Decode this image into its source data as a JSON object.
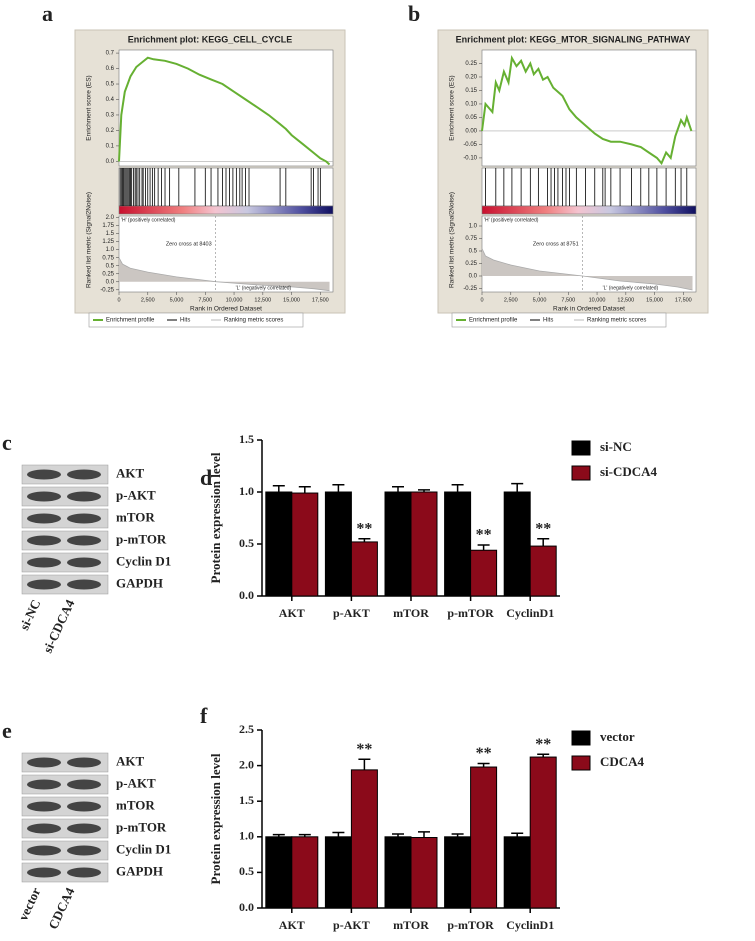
{
  "chart_data": [
    {
      "type": "gsea",
      "panel": "a",
      "title": "Enrichment plot: KEGG_CELL_CYCLE",
      "ylabel": "Enrichment score (ES)",
      "color": "#66b032",
      "x": [
        0,
        200,
        500,
        1000,
        1500,
        2000,
        2500,
        3000,
        4000,
        5000,
        6000,
        7000,
        8000,
        9000,
        10000,
        11000,
        12000,
        13000,
        14000,
        14500,
        15000,
        16000,
        17000,
        17500,
        18000,
        18300
      ],
      "values": [
        0,
        0.3,
        0.45,
        0.55,
        0.61,
        0.64,
        0.67,
        0.66,
        0.65,
        0.63,
        0.6,
        0.56,
        0.53,
        0.5,
        0.45,
        0.4,
        0.35,
        0.3,
        0.24,
        0.21,
        0.17,
        0.11,
        0.05,
        0.02,
        0.0,
        -0.02
      ],
      "xlim": [
        0,
        18600
      ],
      "ylim": [
        -0.03,
        0.72
      ],
      "yticks": [
        {
          "value": 0,
          "label": "0.0"
        },
        0.1,
        0.2,
        0.3,
        0.4,
        0.5,
        0.6,
        0.7
      ],
      "xticks": [
        0,
        {
          "value": 2500,
          "label": "2,500"
        },
        {
          "value": 5000,
          "label": "5,000"
        },
        {
          "value": 7500,
          "label": "7,500"
        },
        {
          "value": 10000,
          "label": "10,000"
        },
        {
          "value": 12500,
          "label": "12,500"
        },
        {
          "value": 15000,
          "label": "15,000"
        },
        {
          "value": 17500,
          "label": "17,500"
        }
      ],
      "hits": [
        100,
        200,
        300,
        400,
        500,
        600,
        700,
        800,
        900,
        1000,
        1100,
        1250,
        1400,
        1500,
        1650,
        1800,
        2000,
        2100,
        2300,
        2500,
        2700,
        2900,
        3100,
        3400,
        3700,
        4000,
        4400,
        5200,
        6600,
        7500,
        8000,
        8600,
        9000,
        9300,
        9600,
        9900,
        10200,
        10500,
        10700,
        11000,
        11300,
        14000,
        14500,
        16700,
        16900,
        17300,
        17500
      ],
      "metric": {
        "ylabel": "Ranked list metric (Signal2Noise)",
        "x": [
          0,
          300,
          1000,
          2500,
          5000,
          8403,
          12000,
          15000,
          17000,
          18300
        ],
        "values": [
          0.75,
          0.55,
          0.42,
          0.3,
          0.15,
          0,
          -0.1,
          -0.16,
          -0.22,
          -0.28
        ],
        "ylim": [
          -0.32,
          2.05
        ],
        "yticks": [
          {
            "value": 2,
            "label": "2.0"
          },
          1.75,
          1.5,
          1.25,
          {
            "value": 1,
            "label": "1.0"
          },
          0.75,
          0.5,
          0.25,
          {
            "value": 0,
            "label": "0.0"
          },
          -0.25
        ]
      },
      "zero_cross": "Zero cross at 8403",
      "pos_label": "'H' (positively correlated)",
      "neg_label": "'L' (negatively correlated)",
      "xlabel": "Rank in Ordered Dataset",
      "legend": [
        "Enrichment profile",
        "Hits",
        "Ranking metric scores"
      ]
    },
    {
      "type": "gsea",
      "panel": "b",
      "title": "Enrichment plot: KEGG_MTOR_SIGNALING_PATHWAY",
      "ylabel": "Enrichment score (ES)",
      "color": "#66b032",
      "x": [
        0,
        300,
        900,
        1200,
        1500,
        1900,
        2300,
        2600,
        3000,
        3400,
        3800,
        4200,
        4500,
        4900,
        5300,
        5700,
        6200,
        7000,
        7600,
        8200,
        9000,
        9800,
        10500,
        11200,
        12000,
        13000,
        13800,
        14500,
        15200,
        15600,
        16000,
        16400,
        16800,
        17300,
        17600,
        17800,
        18200
      ],
      "values": [
        0,
        0.1,
        0.07,
        0.18,
        0.15,
        0.22,
        0.18,
        0.27,
        0.24,
        0.26,
        0.22,
        0.25,
        0.21,
        0.23,
        0.19,
        0.2,
        0.16,
        0.13,
        0.08,
        0.05,
        0.02,
        -0.01,
        -0.03,
        -0.04,
        -0.04,
        -0.05,
        -0.06,
        -0.08,
        -0.1,
        -0.12,
        -0.08,
        -0.1,
        -0.02,
        0.04,
        0.02,
        0.05,
        0.0
      ],
      "xlim": [
        0,
        18600
      ],
      "ylim": [
        -0.13,
        0.3
      ],
      "yticks": [
        0.25,
        {
          "value": 0.2,
          "label": "0.20"
        },
        0.15,
        {
          "value": 0.1,
          "label": "0.10"
        },
        0.05,
        {
          "value": 0,
          "label": "0.00"
        },
        -0.05,
        {
          "value": -0.1,
          "label": "-0.10"
        }
      ],
      "xticks": [
        0,
        {
          "value": 2500,
          "label": "2,500"
        },
        {
          "value": 5000,
          "label": "5,000"
        },
        {
          "value": 7500,
          "label": "7,500"
        },
        {
          "value": 10000,
          "label": "10,000"
        },
        {
          "value": 12500,
          "label": "12,500"
        },
        {
          "value": 15000,
          "label": "15,000"
        },
        {
          "value": 17500,
          "label": "17,500"
        }
      ],
      "hits": [
        300,
        1200,
        1900,
        2600,
        3400,
        4200,
        4900,
        5700,
        6000,
        6300,
        6600,
        7000,
        7300,
        7600,
        8200,
        9000,
        9800,
        10500,
        10700,
        11200,
        12000,
        13000,
        13800,
        14500,
        15200,
        16000,
        16800,
        17300,
        17800
      ],
      "metric": {
        "ylabel": "Ranked list metric (Signal2Noise)",
        "x": [
          0,
          300,
          1000,
          2500,
          5000,
          8751,
          12000,
          15000,
          17000,
          18300
        ],
        "values": [
          0.55,
          0.4,
          0.32,
          0.22,
          0.1,
          0,
          -0.1,
          -0.16,
          -0.22,
          -0.28
        ],
        "ylim": [
          -0.32,
          1.2
        ],
        "yticks": [
          {
            "value": 1,
            "label": "1.0"
          },
          0.75,
          0.5,
          0.25,
          {
            "value": 0,
            "label": "0.0"
          },
          -0.25
        ]
      },
      "zero_cross": "Zero cross at 8751",
      "pos_label": "'H' (positively correlated)",
      "neg_label": "'L' (negatively correlated)",
      "xlabel": "Rank in Ordered Dataset",
      "legend": [
        "Enrichment profile",
        "Hits",
        "Ranking metric scores"
      ]
    },
    {
      "type": "bar",
      "panel": "d",
      "ylabel": "Protein expression level",
      "categories": [
        "AKT",
        "p-AKT",
        "mTOR",
        "p-mTOR",
        "CyclinD1"
      ],
      "ylim": [
        0,
        1.5
      ],
      "yticks": [
        {
          "value": 0,
          "label": "0.0"
        },
        0.5,
        {
          "value": 1,
          "label": "1.0"
        },
        1.5
      ],
      "series": [
        {
          "name": "si-NC",
          "color": "#000000",
          "values": [
            1,
            1,
            1,
            1,
            1
          ],
          "errors": [
            0.06,
            0.07,
            0.05,
            0.07,
            0.08
          ]
        },
        {
          "name": "si-CDCA4",
          "color": "#8b0a1a",
          "values": [
            0.99,
            0.52,
            1.0,
            0.44,
            0.48
          ],
          "errors": [
            0.06,
            0.03,
            0.02,
            0.05,
            0.07
          ],
          "significance": [
            null,
            "**",
            null,
            "**",
            "**"
          ]
        }
      ]
    },
    {
      "type": "bar",
      "panel": "f",
      "ylabel": "Protein expression level",
      "categories": [
        "AKT",
        "p-AKT",
        "mTOR",
        "p-mTOR",
        "CyclinD1"
      ],
      "ylim": [
        0,
        2.5
      ],
      "yticks": [
        {
          "value": 0,
          "label": "0.0"
        },
        0.5,
        {
          "value": 1,
          "label": "1.0"
        },
        1.5,
        {
          "value": 2,
          "label": "2.0"
        },
        2.5
      ],
      "series": [
        {
          "name": "vector",
          "color": "#000000",
          "values": [
            1,
            1,
            1,
            1,
            1
          ],
          "errors": [
            0.03,
            0.06,
            0.04,
            0.04,
            0.05
          ]
        },
        {
          "name": "CDCA4",
          "color": "#8b0a1a",
          "values": [
            1.0,
            1.94,
            0.99,
            1.98,
            2.12
          ],
          "errors": [
            0.03,
            0.15,
            0.08,
            0.05,
            0.04
          ],
          "significance": [
            null,
            "**",
            null,
            "**",
            "**"
          ]
        }
      ]
    }
  ],
  "blots": [
    {
      "panel": "c",
      "bands": [
        "AKT",
        "p-AKT",
        "mTOR",
        "p-mTOR",
        "Cyclin D1",
        "GAPDH"
      ],
      "lanes": [
        "si-NC",
        "si-CDCA4"
      ]
    },
    {
      "panel": "e",
      "bands": [
        "AKT",
        "p-AKT",
        "mTOR",
        "p-mTOR",
        "Cyclin D1",
        "GAPDH"
      ],
      "lanes": [
        "vector",
        "CDCA4"
      ]
    }
  ]
}
